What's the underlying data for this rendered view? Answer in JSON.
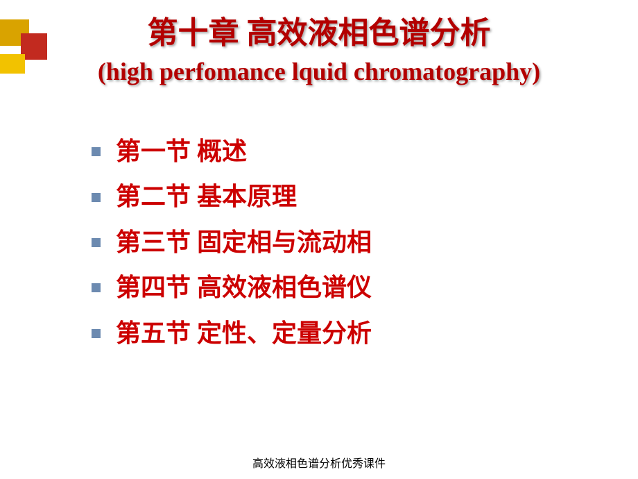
{
  "colors": {
    "title": "#b30000",
    "list_text": "#cc0000",
    "bullet": "#6c8ab0",
    "footer": "#000000",
    "deco_gold": "#d9a300",
    "deco_red": "#c22a1f",
    "deco_yellow": "#f2c200"
  },
  "title": {
    "cn": "第十章  高效液相色谱分析",
    "en": "(high perfomance lquid chromatography)"
  },
  "items": [
    "第一节  概述",
    "第二节  基本原理",
    "第三节  固定相与流动相",
    "第四节  高效液相色谱仪",
    "第五节  定性、定量分析"
  ],
  "footer": "高效液相色谱分析优秀课件"
}
